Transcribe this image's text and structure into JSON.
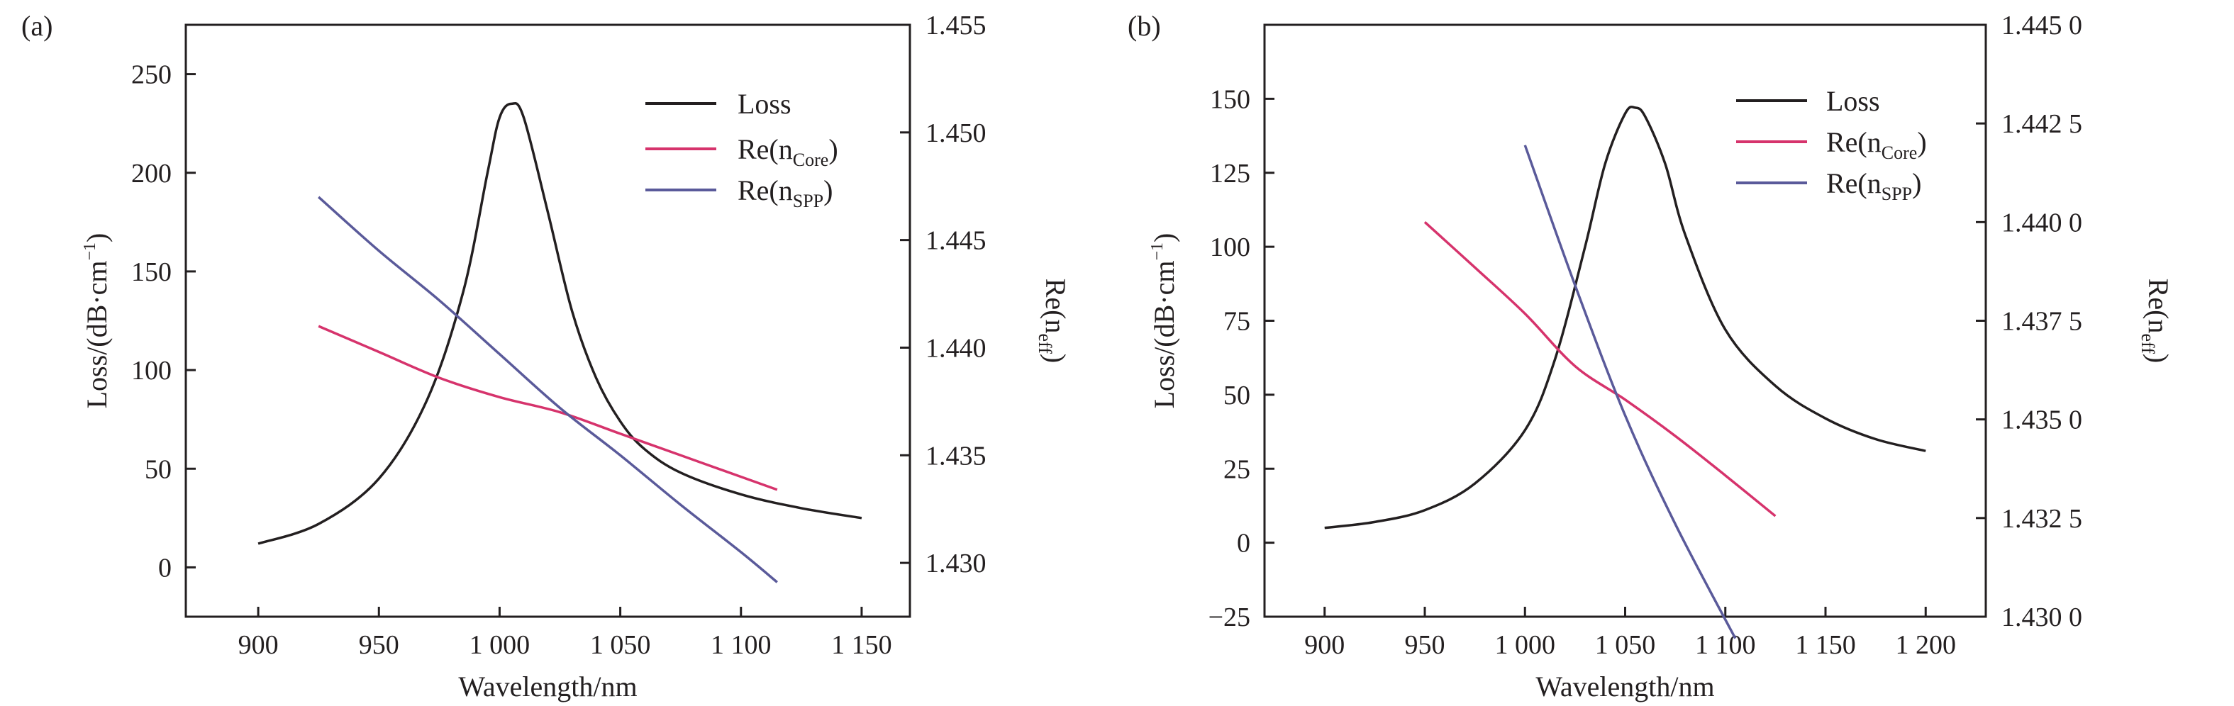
{
  "chart_data": [
    {
      "type": "line",
      "panel_label": "(a)",
      "xlabel": "Wavelength/nm",
      "ylabel_left": {
        "text": "Loss/(dB·cm",
        "sup": "−1",
        "close": ")"
      },
      "ylabel_right": {
        "text": "Re(n",
        "sub": "eff",
        "close": ")"
      },
      "xlim": [
        870,
        1170
      ],
      "ylim_left": [
        -25,
        275
      ],
      "ylim_right": [
        1.4275,
        1.455
      ],
      "x_ticks": [
        900,
        950,
        1000,
        1050,
        1100,
        1150
      ],
      "x_tick_labels": [
        "900",
        "950",
        "1 000",
        "1 050",
        "1 100",
        "1 150"
      ],
      "y_left_ticks": [
        0,
        50,
        100,
        150,
        200,
        250
      ],
      "y_left_tick_labels": [
        "0",
        "50",
        "100",
        "150",
        "200",
        "250"
      ],
      "y_right_ticks": [
        1.43,
        1.435,
        1.44,
        1.445,
        1.45,
        1.455
      ],
      "y_right_tick_labels": [
        "1.430",
        "1.435",
        "1.440",
        "1.445",
        "1.450",
        "1.455"
      ],
      "legend_position": "top-right",
      "series": [
        {
          "name": "Loss",
          "legend_base": "Loss",
          "legend_sub": "",
          "legend_close": "",
          "axis": "left",
          "color": "#231f20",
          "x": [
            900,
            925,
            950,
            970,
            985,
            995,
            1000,
            1005,
            1010,
            1020,
            1030,
            1040,
            1050,
            1060,
            1075,
            1100,
            1125,
            1150
          ],
          "y": [
            12,
            22,
            45,
            85,
            140,
            200,
            228,
            235,
            228,
            180,
            130,
            96,
            74,
            60,
            48,
            37,
            30,
            25
          ]
        },
        {
          "name": "Re(nCore)",
          "legend_base": "Re(n",
          "legend_sub": "Core",
          "legend_close": ")",
          "axis": "right",
          "color": "#d6336c",
          "x": [
            925,
            950,
            975,
            1000,
            1025,
            1050,
            1075,
            1100,
            1115
          ],
          "y": [
            1.441,
            1.4398,
            1.4386,
            1.4377,
            1.437,
            1.436,
            1.435,
            1.434,
            1.4334
          ]
        },
        {
          "name": "Re(nSPP)",
          "legend_base": "Re(n",
          "legend_sub": "SPP",
          "legend_close": ")",
          "axis": "right",
          "color": "#5a5a9a",
          "x": [
            925,
            950,
            975,
            1000,
            1025,
            1050,
            1075,
            1100,
            1115
          ],
          "y": [
            1.447,
            1.4445,
            1.4422,
            1.4397,
            1.4372,
            1.435,
            1.4327,
            1.4305,
            1.4291
          ]
        }
      ]
    },
    {
      "type": "line",
      "panel_label": "(b)",
      "xlabel": "Wavelength/nm",
      "ylabel_left": {
        "text": "Loss/(dB·cm",
        "sup": "−1",
        "close": ")"
      },
      "ylabel_right": {
        "text": "Re(n",
        "sub": "eff",
        "close": ")"
      },
      "xlim": [
        870,
        1230
      ],
      "ylim_left": [
        -25,
        175
      ],
      "ylim_right": [
        1.43,
        1.445
      ],
      "x_ticks": [
        900,
        950,
        1000,
        1050,
        1100,
        1150,
        1200
      ],
      "x_tick_labels": [
        "900",
        "950",
        "1 000",
        "1 050",
        "1 100",
        "1 150",
        "1 200"
      ],
      "y_left_ticks": [
        -25,
        0,
        25,
        50,
        75,
        100,
        125,
        150
      ],
      "y_left_tick_labels": [
        "−25",
        "0",
        "25",
        "50",
        "75",
        "100",
        "125",
        "150"
      ],
      "y_right_ticks": [
        1.43,
        1.4325,
        1.435,
        1.4375,
        1.44,
        1.4425,
        1.445
      ],
      "y_right_tick_labels": [
        "1.430 0",
        "1.432 5",
        "1.435 0",
        "1.437 5",
        "1.440 0",
        "1.442 5",
        "1.445 0"
      ],
      "legend_position": "top-right",
      "series": [
        {
          "name": "Loss",
          "legend_base": "Loss",
          "legend_sub": "",
          "legend_close": "",
          "axis": "left",
          "color": "#231f20",
          "x": [
            900,
            925,
            950,
            975,
            1000,
            1015,
            1030,
            1040,
            1050,
            1055,
            1060,
            1070,
            1080,
            1100,
            1125,
            1150,
            1175,
            1200
          ],
          "y": [
            5,
            7,
            11,
            20,
            38,
            62,
            100,
            128,
            145,
            147,
            144,
            128,
            104,
            72,
            53,
            42,
            35,
            31
          ]
        },
        {
          "name": "Re(nCore)",
          "legend_base": "Re(n",
          "legend_sub": "Core",
          "legend_close": ")",
          "axis": "right",
          "color": "#d6336c",
          "x": [
            950,
            975,
            1000,
            1025,
            1050,
            1075,
            1100,
            1125
          ],
          "y": [
            1.44,
            1.43885,
            1.43768,
            1.43635,
            1.4355,
            1.43458,
            1.43358,
            1.43255
          ]
        },
        {
          "name": "Re(nSPP)",
          "legend_base": "Re(n",
          "legend_sub": "SPP",
          "legend_close": ")",
          "axis": "right",
          "color": "#5a5a9a",
          "x": [
            1000,
            1025,
            1050,
            1075,
            1105
          ],
          "y": [
            1.44195,
            1.4384,
            1.4351,
            1.43235,
            1.42945
          ]
        }
      ]
    }
  ]
}
